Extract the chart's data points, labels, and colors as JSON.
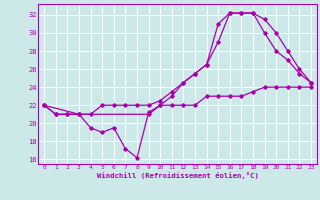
{
  "background_color": "#cce8e8",
  "grid_color": "#ffffff",
  "line_color": "#aa00aa",
  "xlabel": "Windchill (Refroidissement éolien,°C)",
  "xlim": [
    -0.5,
    23.5
  ],
  "ylim": [
    15.5,
    33.2
  ],
  "yticks": [
    16,
    18,
    20,
    22,
    24,
    26,
    28,
    30,
    32
  ],
  "xticks": [
    0,
    1,
    2,
    3,
    4,
    5,
    6,
    7,
    8,
    9,
    10,
    11,
    12,
    13,
    14,
    15,
    16,
    17,
    18,
    19,
    20,
    21,
    22,
    23
  ],
  "line1_x": [
    0,
    1,
    2,
    3,
    4,
    5,
    6,
    7,
    8,
    9,
    10,
    11,
    12,
    13,
    14,
    15,
    16,
    17,
    18,
    19,
    20,
    21,
    22,
    23
  ],
  "line1_y": [
    22,
    21,
    21,
    21,
    19.5,
    19,
    19.5,
    17.2,
    16.2,
    21.2,
    22,
    22,
    22,
    22,
    23,
    23,
    23,
    23,
    23.5,
    24,
    24,
    24,
    24,
    24
  ],
  "line2_x": [
    0,
    1,
    2,
    3,
    4,
    5,
    6,
    7,
    8,
    9,
    10,
    11,
    12,
    13,
    14,
    15,
    16,
    17,
    18,
    19,
    20,
    21,
    22,
    23
  ],
  "line2_y": [
    22,
    21,
    21,
    21,
    21,
    22,
    22,
    22,
    22,
    22,
    22.5,
    23.5,
    24.5,
    25.5,
    26.5,
    29,
    32.2,
    32.2,
    32.2,
    30,
    28,
    27,
    25.5,
    24.5
  ],
  "line3_x": [
    0,
    3,
    9,
    10,
    11,
    12,
    13,
    14,
    15,
    16,
    17,
    18,
    19,
    20,
    21,
    22,
    23
  ],
  "line3_y": [
    22,
    21,
    21,
    22,
    23,
    24.5,
    25.5,
    26.5,
    31,
    32.2,
    32.2,
    32.2,
    31.5,
    30,
    28,
    26,
    24.5
  ]
}
